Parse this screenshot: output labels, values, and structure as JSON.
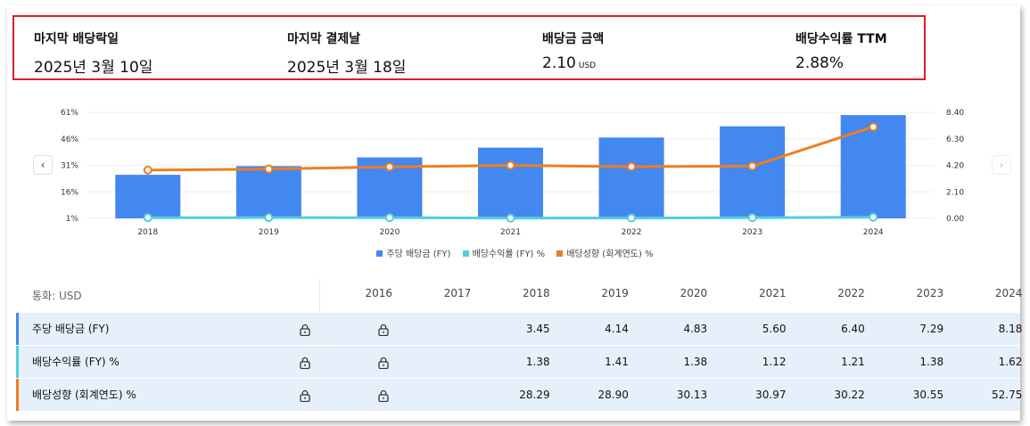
{
  "summary": {
    "items": [
      {
        "label": "마지막 배당락일",
        "value": "2025년 3월 10일",
        "unit": ""
      },
      {
        "label": "마지막 결제날",
        "value": "2025년 3월 18일",
        "unit": ""
      },
      {
        "label": "배당금 금액",
        "value": "2.10",
        "unit": "USD"
      },
      {
        "label": "배당수익률 TTM",
        "value": "2.88%",
        "unit": ""
      }
    ]
  },
  "colors": {
    "bar": "#4387f0",
    "yield": "#4fcfe0",
    "payout": "#f07d1f",
    "highlight": "#d9202a"
  },
  "chart_data": {
    "type": "bar",
    "categories": [
      "2018",
      "2019",
      "2020",
      "2021",
      "2022",
      "2023",
      "2024"
    ],
    "series": [
      {
        "name": "주당 배당금 (FY)",
        "kind": "bar",
        "axis": "right",
        "values": [
          3.45,
          4.14,
          4.83,
          5.6,
          6.4,
          7.29,
          8.18
        ]
      },
      {
        "name": "배당수익률 (FY) %",
        "kind": "line",
        "axis": "left",
        "values": [
          1.38,
          1.41,
          1.38,
          1.12,
          1.21,
          1.38,
          1.62
        ]
      },
      {
        "name": "배당성향 (회계연도) %",
        "kind": "line",
        "axis": "left",
        "values": [
          28.29,
          28.9,
          30.13,
          30.97,
          30.22,
          30.55,
          52.75
        ]
      }
    ],
    "left_axis": {
      "min": 1,
      "max": 61,
      "ticks": [
        "61%",
        "46%",
        "31%",
        "16%",
        "1%"
      ]
    },
    "right_axis": {
      "min": 0,
      "max": 8.4,
      "ticks": [
        "8.40",
        "6.30",
        "4.20",
        "2.10",
        "0.00"
      ]
    },
    "legend": [
      "주당 배당금 (FY)",
      "배당수익률 (FY) %",
      "배당성향 (회계연도) %"
    ]
  },
  "nav": {
    "prev": "‹",
    "next": "›"
  },
  "table": {
    "currency_label": "통화: USD",
    "years": [
      "2016",
      "2017",
      "2018",
      "2019",
      "2020",
      "2021",
      "2022",
      "2023",
      "2024"
    ],
    "rows": [
      {
        "label": "주당 배당금 (FY)",
        "values": [
          "",
          "",
          "3.45",
          "4.14",
          "4.83",
          "5.60",
          "6.40",
          "7.29",
          "8.18"
        ]
      },
      {
        "label": "배당수익률 (FY) %",
        "values": [
          "",
          "",
          "1.38",
          "1.41",
          "1.38",
          "1.12",
          "1.21",
          "1.38",
          "1.62"
        ]
      },
      {
        "label": "배당성향 (회계연도) %",
        "values": [
          "",
          "",
          "28.29",
          "28.90",
          "30.13",
          "30.97",
          "30.22",
          "30.55",
          "52.75"
        ]
      }
    ]
  }
}
